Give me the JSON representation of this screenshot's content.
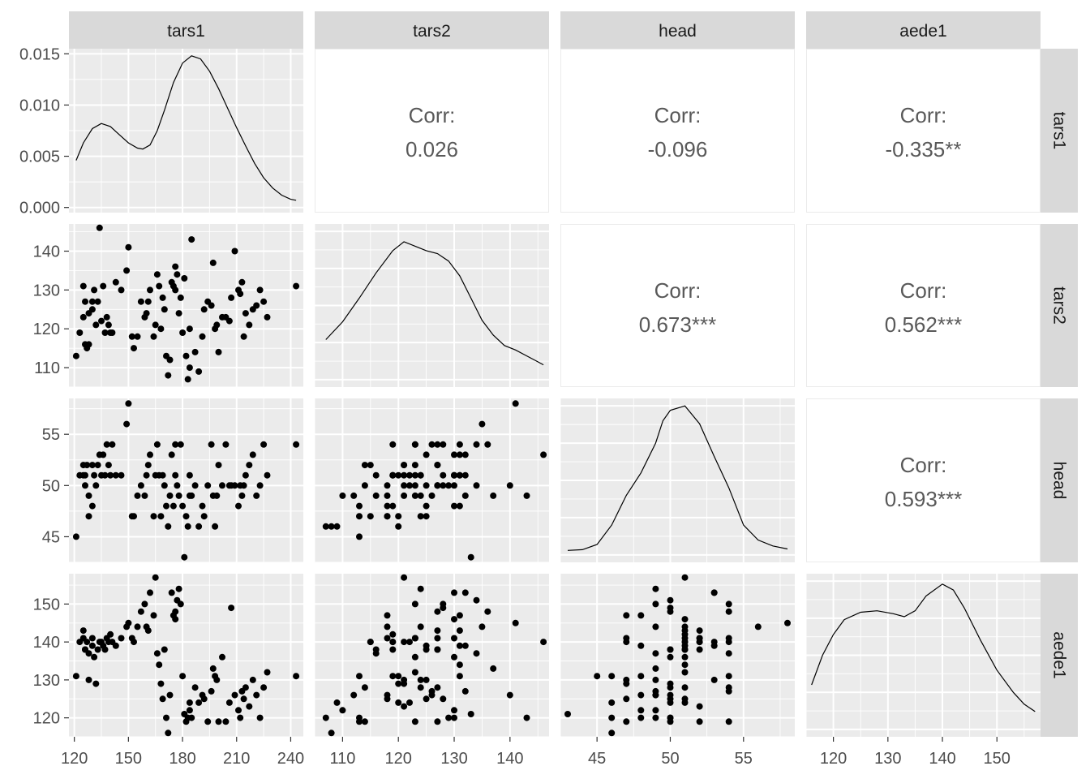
{
  "chart_data": {
    "type": "scatter-matrix",
    "variables": [
      "tars1",
      "tars2",
      "head",
      "aede1"
    ],
    "colors": {
      "panel_bg": "#EBEBEB",
      "grid": "#FFFFFF",
      "strip_bg": "#D9D9D9",
      "points": "#000000",
      "corr_text": "#595959",
      "axis_text": "#4D4D4D"
    },
    "axes": {
      "tars1": {
        "range": [
          117,
          247
        ],
        "ticks": [
          120,
          150,
          180,
          210,
          240
        ],
        "tick_labels": [
          "120",
          "150",
          "180",
          "210",
          "240"
        ]
      },
      "tars2": {
        "range": [
          105,
          147
        ],
        "ticks": [
          110,
          120,
          130,
          140
        ],
        "tick_labels": [
          "110",
          "120",
          "130",
          "140"
        ]
      },
      "head": {
        "range": [
          42.5,
          58.5
        ],
        "ticks": [
          45,
          50,
          55
        ],
        "tick_labels": [
          "45",
          "50",
          "55"
        ]
      },
      "aede1": {
        "range": [
          115,
          158
        ],
        "ticks": [
          120,
          130,
          140,
          150
        ],
        "tick_labels": [
          "120",
          "130",
          "140",
          "150"
        ]
      }
    },
    "density_axis": {
      "range": [
        -0.0005,
        0.0155
      ],
      "ticks": [
        0,
        0.005,
        0.01,
        0.015
      ],
      "tick_labels": [
        "0.000",
        "0.005",
        "0.010",
        "0.015"
      ]
    },
    "corr_label": "Corr:",
    "correlations": [
      {
        "row": "tars1",
        "col": "tars2",
        "value": "0.026"
      },
      {
        "row": "tars1",
        "col": "head",
        "value": "-0.096"
      },
      {
        "row": "tars1",
        "col": "aede1",
        "value": "-0.335**"
      },
      {
        "row": "tars2",
        "col": "head",
        "value": "0.673***"
      },
      {
        "row": "tars2",
        "col": "aede1",
        "value": "0.562***"
      },
      {
        "row": "head",
        "col": "aede1",
        "value": "0.593***"
      }
    ],
    "densities": {
      "tars1": [
        [
          121,
          0.0046
        ],
        [
          125,
          0.0063
        ],
        [
          130,
          0.0077
        ],
        [
          135,
          0.0082
        ],
        [
          140,
          0.0079
        ],
        [
          145,
          0.0071
        ],
        [
          150,
          0.0063
        ],
        [
          155,
          0.0058
        ],
        [
          158,
          0.0057
        ],
        [
          162,
          0.0061
        ],
        [
          166,
          0.0075
        ],
        [
          170,
          0.0095
        ],
        [
          175,
          0.0122
        ],
        [
          180,
          0.0141
        ],
        [
          185,
          0.0148
        ],
        [
          190,
          0.0145
        ],
        [
          195,
          0.0133
        ],
        [
          200,
          0.0116
        ],
        [
          205,
          0.0097
        ],
        [
          210,
          0.0078
        ],
        [
          215,
          0.006
        ],
        [
          220,
          0.0043
        ],
        [
          225,
          0.0029
        ],
        [
          230,
          0.0019
        ],
        [
          235,
          0.0012
        ],
        [
          240,
          0.0008
        ],
        [
          243,
          0.0007
        ]
      ],
      "tars2": [
        [
          107,
          0.27
        ],
        [
          110,
          0.39
        ],
        [
          113,
          0.55
        ],
        [
          116,
          0.72
        ],
        [
          119,
          0.87
        ],
        [
          121,
          0.93
        ],
        [
          123,
          0.9
        ],
        [
          125,
          0.87
        ],
        [
          127,
          0.85
        ],
        [
          129,
          0.8
        ],
        [
          131,
          0.7
        ],
        [
          133,
          0.55
        ],
        [
          135,
          0.4
        ],
        [
          137,
          0.3
        ],
        [
          139,
          0.23
        ],
        [
          141,
          0.2
        ],
        [
          143,
          0.16
        ],
        [
          145,
          0.12
        ],
        [
          146,
          0.1
        ]
      ],
      "head": [
        [
          43,
          0.03
        ],
        [
          44,
          0.035
        ],
        [
          45,
          0.07
        ],
        [
          46,
          0.2
        ],
        [
          47,
          0.4
        ],
        [
          48,
          0.55
        ],
        [
          49,
          0.75
        ],
        [
          49.5,
          0.9
        ],
        [
          50,
          0.97
        ],
        [
          51,
          1.0
        ],
        [
          52,
          0.88
        ],
        [
          53,
          0.66
        ],
        [
          54,
          0.45
        ],
        [
          55,
          0.2
        ],
        [
          56,
          0.1
        ],
        [
          57,
          0.06
        ],
        [
          58,
          0.04
        ]
      ],
      "aede1": [
        [
          116,
          0.3
        ],
        [
          118,
          0.5
        ],
        [
          120,
          0.64
        ],
        [
          122,
          0.74
        ],
        [
          125,
          0.79
        ],
        [
          128,
          0.8
        ],
        [
          131,
          0.78
        ],
        [
          133,
          0.76
        ],
        [
          135,
          0.8
        ],
        [
          137,
          0.9
        ],
        [
          140,
          0.98
        ],
        [
          142,
          0.94
        ],
        [
          144,
          0.82
        ],
        [
          147,
          0.6
        ],
        [
          150,
          0.4
        ],
        [
          153,
          0.25
        ],
        [
          155,
          0.17
        ],
        [
          157,
          0.12
        ]
      ]
    },
    "observations": [
      [
        121,
        113,
        45,
        131
      ],
      [
        123,
        119,
        51,
        140
      ],
      [
        125,
        131,
        51,
        143
      ],
      [
        125,
        123,
        52,
        141
      ],
      [
        126,
        116,
        51,
        138
      ],
      [
        126,
        127,
        50,
        138
      ],
      [
        127,
        115,
        52,
        140
      ],
      [
        128,
        116,
        49,
        137
      ],
      [
        128,
        124,
        47,
        130
      ],
      [
        130,
        127,
        52,
        141
      ],
      [
        130,
        125,
        48,
        139
      ],
      [
        131,
        130,
        51,
        136
      ],
      [
        132,
        121,
        50,
        129
      ],
      [
        133,
        127,
        52,
        138
      ],
      [
        134,
        146,
        53,
        140
      ],
      [
        135,
        122,
        51,
        140
      ],
      [
        136,
        131,
        53,
        139
      ],
      [
        137,
        119,
        51,
        138
      ],
      [
        138,
        123,
        54,
        141
      ],
      [
        139,
        121,
        52,
        140
      ],
      [
        140,
        119,
        51,
        142
      ],
      [
        141,
        119,
        54,
        140
      ],
      [
        143,
        132,
        51,
        139
      ],
      [
        146,
        130,
        51,
        141
      ],
      [
        149,
        135,
        56,
        144
      ],
      [
        150,
        141,
        58,
        145
      ],
      [
        152,
        118,
        47,
        141
      ],
      [
        153,
        115,
        47,
        140
      ],
      [
        155,
        118,
        49,
        144
      ],
      [
        157,
        127,
        50,
        148
      ],
      [
        159,
        123,
        49,
        150
      ],
      [
        160,
        124,
        51,
        144
      ],
      [
        161,
        127,
        52,
        143
      ],
      [
        162,
        130,
        53,
        153
      ],
      [
        164,
        118,
        47,
        147
      ],
      [
        165,
        121,
        51,
        157
      ],
      [
        166,
        134,
        54,
        137
      ],
      [
        167,
        131,
        51,
        134
      ],
      [
        168,
        120,
        47,
        129
      ],
      [
        169,
        128,
        51,
        125
      ],
      [
        170,
        125,
        50,
        138
      ],
      [
        171,
        113,
        48,
        120
      ],
      [
        172,
        108,
        46,
        116
      ],
      [
        173,
        112,
        49,
        126
      ],
      [
        174,
        132,
        53,
        153
      ],
      [
        175,
        131,
        48,
        147
      ],
      [
        176,
        130,
        51,
        146
      ],
      [
        176,
        136,
        54,
        148
      ],
      [
        177,
        134,
        50,
        151
      ],
      [
        178,
        124,
        49,
        154
      ],
      [
        179,
        128,
        54,
        150
      ],
      [
        180,
        119,
        48,
        131
      ],
      [
        181,
        133,
        43,
        121
      ],
      [
        182,
        113,
        47,
        119
      ],
      [
        183,
        107,
        46,
        120
      ],
      [
        184,
        120,
        51,
        124
      ],
      [
        184,
        110,
        49,
        122
      ],
      [
        185,
        143,
        49,
        120
      ],
      [
        187,
        114,
        50,
        128
      ],
      [
        189,
        109,
        46,
        124
      ],
      [
        191,
        118,
        48,
        126
      ],
      [
        192,
        125,
        47,
        125
      ],
      [
        194,
        127,
        50,
        119
      ],
      [
        196,
        126,
        54,
        127
      ],
      [
        197,
        137,
        49,
        133
      ],
      [
        198,
        120,
        46,
        131
      ],
      [
        199,
        121,
        49,
        130
      ],
      [
        200,
        114,
        52,
        119
      ],
      [
        202,
        123,
        50,
        136
      ],
      [
        204,
        123,
        54,
        119
      ],
      [
        206,
        122,
        50,
        124
      ],
      [
        207,
        128,
        50,
        149
      ],
      [
        209,
        140,
        50,
        126
      ],
      [
        211,
        130,
        48,
        122
      ],
      [
        212,
        129,
        50,
        120
      ],
      [
        213,
        132,
        49,
        127
      ],
      [
        214,
        118,
        50,
        125
      ],
      [
        215,
        124,
        51,
        128
      ],
      [
        217,
        121,
        52,
        123
      ],
      [
        219,
        125,
        53,
        130
      ],
      [
        221,
        126,
        49,
        126
      ],
      [
        223,
        130,
        50,
        120
      ],
      [
        225,
        127,
        54,
        128
      ],
      [
        227,
        123,
        51,
        132
      ],
      [
        243,
        131,
        54,
        131
      ]
    ]
  }
}
